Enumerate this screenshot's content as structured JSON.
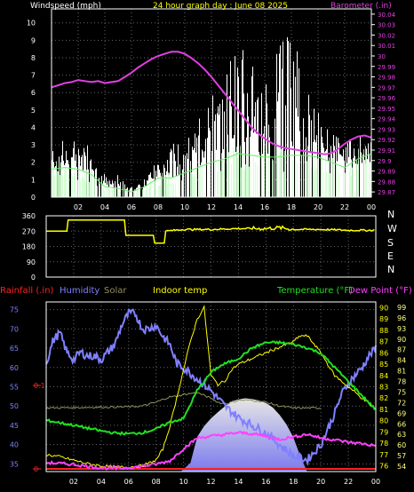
{
  "chart_data": [
    {
      "type": "line",
      "title": "24 hour graph day : June 08 2025",
      "left_axis_label": "Windspeed (mph)",
      "right_axis_label": "Barometer (.in)",
      "x_ticks": [
        "02",
        "04",
        "06",
        "08",
        "10",
        "12",
        "14",
        "16",
        "18",
        "20",
        "22",
        "00"
      ],
      "y_left_ticks": [
        0,
        1,
        2,
        3,
        4,
        5,
        6,
        7,
        8,
        9,
        10
      ],
      "y_left_range": [
        0,
        10.8
      ],
      "y_right_ticks": [
        "29.87",
        "29.88",
        "29.89",
        "29.9",
        "29.91",
        "29.92",
        "29.93",
        "29.94",
        "29.95",
        "29.96",
        "29.97",
        "29.98",
        "29.99",
        "30",
        "30.01",
        "30.02",
        "30.03",
        "30.04"
      ],
      "y_right_range": [
        29.865,
        30.045
      ],
      "grid": true,
      "colors": {
        "windspeed": "#ffffff",
        "wind_avg": "#66ee66",
        "wind_fill": "#cfffcf",
        "barometer": "#e040e0",
        "title": "#ffff00",
        "frame": "#ffffff"
      },
      "series": [
        {
          "role": "barometer",
          "x": [
            0,
            0.5,
            1,
            1.5,
            2,
            2.5,
            3,
            3.5,
            4,
            4.5,
            5,
            5.5,
            6,
            6.5,
            7,
            7.5,
            8,
            8.5,
            9,
            9.5,
            10,
            10.5,
            11,
            11.5,
            12,
            12.5,
            13,
            13.5,
            14,
            14.5,
            15,
            15.5,
            16,
            16.5,
            17,
            17.5,
            18,
            18.5,
            19,
            19.5,
            20,
            20.5,
            21,
            21.5,
            22,
            22.5,
            23,
            23.5,
            24
          ],
          "y": [
            29.97,
            29.972,
            29.974,
            29.975,
            29.977,
            29.976,
            29.975,
            29.976,
            29.974,
            29.975,
            29.976,
            29.98,
            29.984,
            29.989,
            29.993,
            29.997,
            30.0,
            30.002,
            30.004,
            30.004,
            30.002,
            29.998,
            29.993,
            29.987,
            29.98,
            29.972,
            29.964,
            29.956,
            29.948,
            29.94,
            29.932,
            29.926,
            29.921,
            29.917,
            29.914,
            29.912,
            29.911,
            29.91,
            29.909,
            29.908,
            29.907,
            29.906,
            29.907,
            29.911,
            29.916,
            29.92,
            29.923,
            29.924,
            29.922
          ]
        },
        {
          "role": "wind_avg",
          "x": [
            0,
            1,
            2,
            3,
            4,
            5,
            6,
            7,
            8,
            9,
            10,
            11,
            12,
            13,
            14,
            15,
            16,
            17,
            18,
            19,
            20,
            21,
            22,
            23,
            24
          ],
          "y": [
            1.6,
            1.7,
            1.6,
            1.3,
            0.6,
            0.5,
            0.3,
            0.6,
            1.1,
            1.1,
            1.4,
            1.7,
            2.0,
            2.2,
            2.5,
            2.4,
            2.3,
            2.3,
            2.4,
            2.4,
            2.3,
            2.0,
            1.7,
            2.2,
            2.5
          ]
        },
        {
          "role": "windspeed_gust",
          "x": [
            0,
            1,
            2,
            3,
            4,
            5,
            6,
            7,
            8,
            9,
            10,
            11,
            12,
            13,
            14,
            15,
            16,
            17,
            18,
            19,
            20,
            21,
            22,
            23,
            24
          ],
          "y": [
            3.4,
            3.4,
            3.2,
            3.0,
            1.3,
            1.3,
            0.8,
            1.5,
            2.5,
            3.0,
            3.4,
            4.5,
            6.5,
            7.8,
            9.0,
            8.0,
            7.0,
            8.5,
            10.2,
            6.5,
            5.0,
            4.0,
            3.5,
            3.3,
            3.5
          ]
        }
      ]
    },
    {
      "type": "line",
      "right_axis_labels": [
        "N",
        "W",
        "S",
        "E",
        "N"
      ],
      "y_ticks": [
        0,
        90,
        180,
        270,
        360
      ],
      "y_range": [
        0,
        360
      ],
      "colors": {
        "direction": "#ffff00"
      },
      "series": [
        {
          "role": "wind_direction",
          "x": [
            0,
            1.5,
            1.6,
            5.7,
            5.8,
            7.0,
            7.1,
            7.8,
            7.9,
            8.6,
            8.7,
            10,
            12,
            14,
            16,
            17,
            18,
            20,
            22,
            24
          ],
          "y": [
            270,
            270,
            335,
            335,
            245,
            245,
            245,
            245,
            200,
            200,
            270,
            280,
            280,
            285,
            285,
            290,
            280,
            280,
            275,
            275
          ]
        }
      ]
    },
    {
      "type": "line",
      "legend": [
        {
          "label": "Rainfall (.in)",
          "color": "#ff2020"
        },
        {
          "label": "Humidity",
          "color": "#8080ff"
        },
        {
          "label": "Solar",
          "color": "#909060"
        },
        {
          "label": "Indoor temp",
          "color": "#ffff00"
        },
        {
          "label": "Temperature (°F)",
          "color": "#20e020"
        },
        {
          "label": "Dew Point (°F)",
          "color": "#ff40ff"
        }
      ],
      "x_ticks": [
        "02",
        "04",
        "06",
        "08",
        "10",
        "12",
        "14",
        "16",
        "18",
        "20",
        "22",
        "00"
      ],
      "humidity_ticks": [
        35,
        40,
        45,
        50,
        55,
        60,
        65,
        70,
        75
      ],
      "humidity_range": [
        33,
        77
      ],
      "temperature_ticks": [
        54,
        57,
        60,
        63,
        66,
        69,
        72,
        75,
        78,
        81,
        84,
        87,
        90,
        93,
        96,
        99
      ],
      "temperature_range": [
        52.5,
        100.5
      ],
      "indoor_ticks": [
        76,
        77,
        78,
        79,
        80,
        81,
        82,
        83,
        84,
        85,
        86,
        87,
        88,
        89,
        90
      ],
      "indoor_range": [
        75.5,
        90.5
      ],
      "rain_ticks": [
        "0",
        "0.1"
      ],
      "rain_range": [
        0,
        0.2
      ],
      "grid": true,
      "series": [
        {
          "role": "humidity",
          "x": [
            0,
            0.5,
            1,
            1.5,
            2,
            2.5,
            3,
            3.5,
            4,
            4.5,
            5,
            5.5,
            6,
            6.5,
            7,
            7.5,
            8,
            8.5,
            9,
            9.5,
            10,
            11,
            12,
            13,
            14,
            15,
            16,
            17,
            18,
            19,
            20,
            20.5,
            21,
            21.5,
            22,
            22.5,
            23,
            23.5,
            24
          ],
          "y": [
            61,
            67,
            69,
            64,
            62,
            64,
            63,
            63,
            62,
            64,
            66,
            71,
            74,
            74,
            70,
            70,
            71,
            68,
            66,
            61,
            60,
            57,
            54,
            50,
            47,
            45,
            43,
            40,
            37,
            36,
            40,
            44,
            48,
            53,
            56,
            58,
            60,
            63,
            65
          ]
        },
        {
          "role": "solar",
          "x": [
            0,
            6,
            7,
            8,
            9,
            9.5,
            10,
            11,
            12,
            12.5,
            13,
            13.5,
            14,
            15,
            16,
            16.5,
            17,
            18,
            19,
            20
          ],
          "y": [
            49.5,
            49.8,
            50.0,
            51.0,
            52.4,
            52.5,
            53.0,
            53.5,
            52.0,
            51.0,
            50.5,
            51.0,
            51.5,
            51.5,
            51.0,
            50.5,
            50.0,
            49.5,
            49.5,
            49.5
          ]
        },
        {
          "role": "solar_area",
          "x": [
            9.8,
            10.5,
            11,
            11.5,
            12,
            12.5,
            13,
            13.5,
            14,
            14.5,
            15,
            15.5,
            16,
            16.5,
            17,
            17.5,
            18,
            18.5,
            19,
            19.5,
            20
          ],
          "y": [
            0,
            35.2,
            42.0,
            44.8,
            46.8,
            48.4,
            49.9,
            51.2,
            51.7,
            52.0,
            51.8,
            51.4,
            50.8,
            49.6,
            47.7,
            45.2,
            41.8,
            37.0,
            30.5,
            18.0,
            0
          ]
        },
        {
          "role": "indoor_temp",
          "x": [
            0,
            1,
            2,
            3,
            4,
            5,
            6,
            7,
            8,
            8.5,
            9,
            9.5,
            10,
            10.5,
            11,
            11.5,
            12,
            12.5,
            13,
            13.5,
            14,
            15,
            16,
            17,
            18,
            18.5,
            19,
            19.5,
            20,
            21,
            22,
            23,
            24
          ],
          "y": [
            77.0,
            76.8,
            76.5,
            76.2,
            76.0,
            75.9,
            75.9,
            76.0,
            76.5,
            77.5,
            79.5,
            82.0,
            84.5,
            87.0,
            89.0,
            90.0,
            84.0,
            83.2,
            83.5,
            84.5,
            85.0,
            85.5,
            86.0,
            86.5,
            87.0,
            87.5,
            87.5,
            86.8,
            86.0,
            84.0,
            83.0,
            82.0,
            81.0
          ]
        },
        {
          "role": "temperature",
          "x": [
            0,
            1,
            2,
            3,
            4,
            5,
            6,
            7,
            8,
            9,
            10,
            10.5,
            11,
            11.5,
            12,
            12.5,
            13,
            14,
            15,
            16,
            17,
            18,
            19,
            20,
            21,
            22,
            23,
            24
          ],
          "y": [
            67.0,
            66.3,
            65.6,
            64.8,
            64.0,
            63.4,
            63.2,
            63.5,
            64.5,
            66.5,
            67.5,
            71.5,
            75.5,
            78.0,
            80.5,
            82.0,
            83.0,
            84.5,
            87.5,
            89.0,
            89.0,
            88.5,
            87.5,
            86.0,
            82.0,
            78.0,
            74.0,
            70.0
          ]
        },
        {
          "role": "dew_point",
          "x": [
            0,
            1,
            2,
            3,
            4,
            5,
            6,
            7,
            8,
            9,
            10,
            11,
            12,
            13,
            14,
            15,
            16,
            17,
            18,
            19,
            20,
            21,
            22,
            23,
            24
          ],
          "y": [
            55.0,
            54.8,
            54.5,
            54.0,
            53.6,
            53.4,
            53.6,
            54.0,
            54.6,
            55.5,
            59.0,
            62.0,
            62.5,
            63.0,
            63.5,
            63.2,
            62.5,
            61.6,
            62.3,
            63.1,
            62.0,
            61.5,
            60.8,
            60.4,
            59.8
          ]
        },
        {
          "role": "rainfall",
          "x": [
            0,
            24
          ],
          "y": [
            0,
            0
          ]
        }
      ]
    }
  ]
}
